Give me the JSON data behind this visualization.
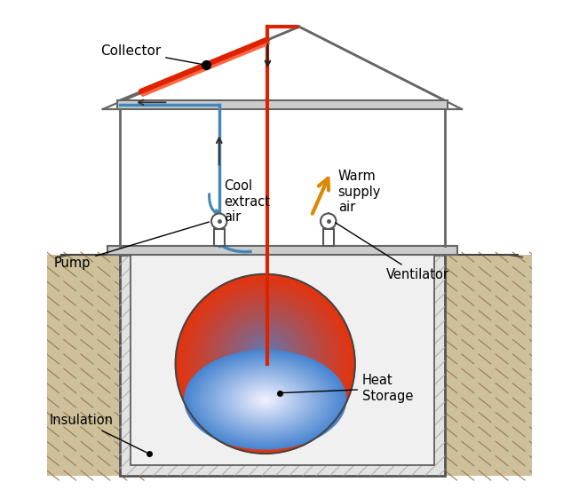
{
  "bg_color": "#ffffff",
  "wall_edge": "#666666",
  "red_line": "#dd2200",
  "blue_line": "#4488bb",
  "orange_color": "#dd8800",
  "ground_fill": "#c8b888",
  "ground_hatch": "#a09060",
  "box_fill": "#e0e0e0",
  "box_hatch": "#aaaaaa",
  "inner_fill": "#eeeeee",
  "labels": {
    "collector": "Collector",
    "cool_air": "Cool\nextract\nair",
    "warm_air": "Warm\nsupply\nair",
    "pump": "Pump",
    "insulation": "Insulation",
    "ventilator": "Ventilator",
    "heat_storage": "Heat\nStorage"
  },
  "figsize": [
    6.52,
    5.52
  ],
  "dpi": 100
}
